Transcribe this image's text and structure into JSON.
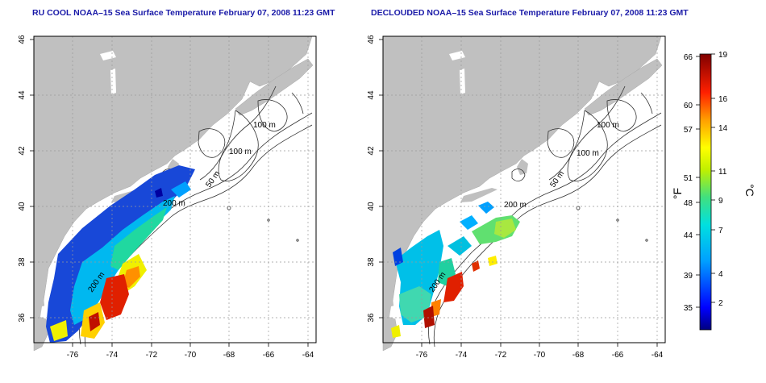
{
  "panels": [
    {
      "title": "RU COOL NOAA–15 Sea Surface Temperature February 07, 2008 11:23 GMT"
    },
    {
      "title": "DECLOUDED NOAA–15 Sea Surface Temperature February 07, 2008 11:23 GMT"
    }
  ],
  "axes": {
    "x_ticks": [
      "-76",
      "-74",
      "-72",
      "-70",
      "-68",
      "-66",
      "-64"
    ],
    "y_ticks": [
      "46",
      "44",
      "42",
      "40",
      "38",
      "36"
    ]
  },
  "contour_labels": [
    "100 m",
    "100 m",
    "50 m",
    "200 m",
    "200 m"
  ],
  "colorbar": {
    "f_unit": "°F",
    "c_unit": "°C",
    "f_ticks": [
      "66",
      "60",
      "57",
      "51",
      "48",
      "44",
      "39",
      "35"
    ],
    "c_ticks": [
      "19",
      "16",
      "14",
      "11",
      "9",
      "7",
      "4",
      "2"
    ]
  },
  "colors": {
    "title": "#1a1aa8",
    "land": "#c0c0c0",
    "grid": "#999999"
  }
}
